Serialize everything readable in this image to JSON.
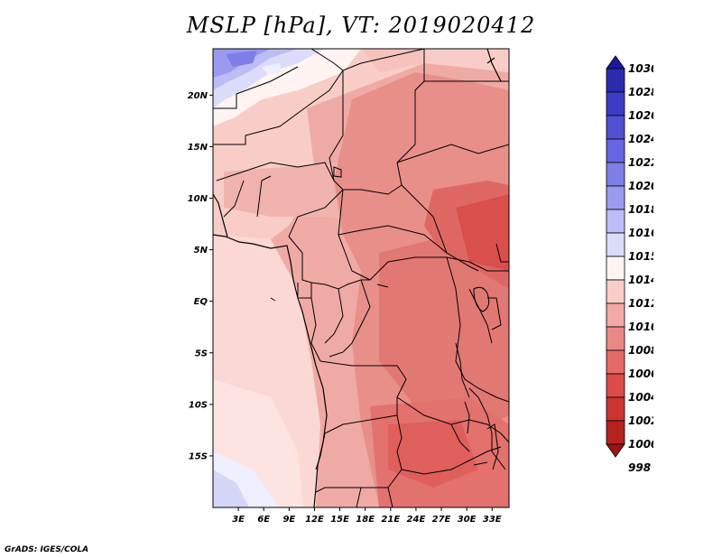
{
  "title": "MSLP [hPa], VT: 2019020412",
  "credit": "GrADS: IGES/COLA",
  "map": {
    "lon_range": [
      0,
      35
    ],
    "lat_range": [
      -20,
      24.5
    ],
    "lat_ticks": [
      "20N",
      "15N",
      "10N",
      "5N",
      "EQ",
      "5S",
      "10S",
      "15S"
    ],
    "lon_ticks": [
      "3E",
      "6E",
      "9E",
      "12E",
      "15E",
      "18E",
      "21E",
      "24E",
      "27E",
      "30E",
      "33E"
    ]
  },
  "colorbar": {
    "labels": [
      "1030",
      "1028",
      "1026",
      "1024",
      "1022",
      "1020",
      "1018",
      "1016",
      "1015",
      "1014",
      "1012",
      "1010",
      "1008",
      "1006",
      "1004",
      "1002",
      "1000",
      "998"
    ],
    "colors": [
      "#1c1a9c",
      "#2b2bb0",
      "#3d3cc4",
      "#5050d2",
      "#6666e0",
      "#7e7ee8",
      "#9a9af0",
      "#bcbcf6",
      "#dcdcfa",
      "#fff4f2",
      "#f9cdc9",
      "#f3aaa6",
      "#e98985",
      "#e56a66",
      "#dd4c48",
      "#cc3531",
      "#b5231f",
      "#9a1612"
    ]
  }
}
